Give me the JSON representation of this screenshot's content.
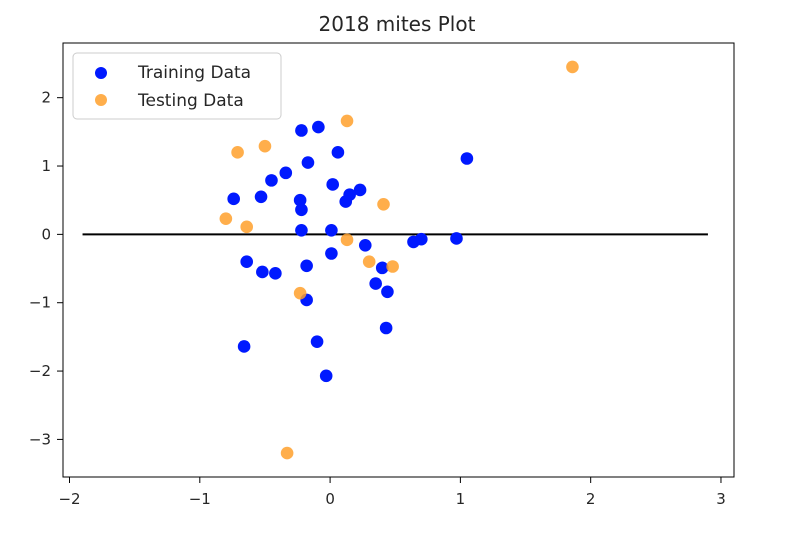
{
  "chart_data": {
    "type": "scatter",
    "title": "2018 mites Plot",
    "xlabel": "",
    "ylabel": "",
    "xlim": [
      -2.05,
      3.1
    ],
    "ylim": [
      -3.55,
      2.8
    ],
    "xticks": [
      -2,
      -1,
      0,
      1,
      2,
      3
    ],
    "yticks": [
      -3,
      -2,
      -1,
      0,
      1,
      2
    ],
    "grid": false,
    "legend_position": "upper-left",
    "hline": {
      "y": 0,
      "xmin": -1.9,
      "xmax": 2.9,
      "color": "#000000"
    },
    "series": [
      {
        "name": "Training Data",
        "color": "#0019ff",
        "points": [
          {
            "x": -0.22,
            "y": 1.52
          },
          {
            "x": -0.09,
            "y": 1.57
          },
          {
            "x": 0.06,
            "y": 1.2
          },
          {
            "x": -0.17,
            "y": 1.05
          },
          {
            "x": 1.05,
            "y": 1.11
          },
          {
            "x": -0.34,
            "y": 0.9
          },
          {
            "x": -0.45,
            "y": 0.79
          },
          {
            "x": -0.74,
            "y": 0.52
          },
          {
            "x": -0.53,
            "y": 0.55
          },
          {
            "x": 0.02,
            "y": 0.73
          },
          {
            "x": 0.23,
            "y": 0.65
          },
          {
            "x": 0.15,
            "y": 0.58
          },
          {
            "x": 0.12,
            "y": 0.48
          },
          {
            "x": -0.23,
            "y": 0.5
          },
          {
            "x": -0.22,
            "y": 0.36
          },
          {
            "x": -0.22,
            "y": 0.06
          },
          {
            "x": 0.01,
            "y": 0.06
          },
          {
            "x": 0.27,
            "y": -0.16
          },
          {
            "x": 0.64,
            "y": -0.11
          },
          {
            "x": 0.7,
            "y": -0.07
          },
          {
            "x": 0.97,
            "y": -0.06
          },
          {
            "x": 0.01,
            "y": -0.28
          },
          {
            "x": -0.64,
            "y": -0.4
          },
          {
            "x": -0.18,
            "y": -0.46
          },
          {
            "x": -0.52,
            "y": -0.55
          },
          {
            "x": -0.42,
            "y": -0.57
          },
          {
            "x": 0.4,
            "y": -0.49
          },
          {
            "x": 0.35,
            "y": -0.72
          },
          {
            "x": 0.44,
            "y": -0.84
          },
          {
            "x": -0.18,
            "y": -0.96
          },
          {
            "x": 0.43,
            "y": -1.37
          },
          {
            "x": -0.1,
            "y": -1.57
          },
          {
            "x": -0.66,
            "y": -1.64
          },
          {
            "x": -0.03,
            "y": -2.07
          }
        ]
      },
      {
        "name": "Testing Data",
        "color": "#ffa02c",
        "points": [
          {
            "x": 1.86,
            "y": 2.45
          },
          {
            "x": 0.13,
            "y": 1.66
          },
          {
            "x": -0.5,
            "y": 1.29
          },
          {
            "x": -0.71,
            "y": 1.2
          },
          {
            "x": 0.41,
            "y": 0.44
          },
          {
            "x": -0.8,
            "y": 0.23
          },
          {
            "x": -0.64,
            "y": 0.11
          },
          {
            "x": 0.13,
            "y": -0.08
          },
          {
            "x": 0.3,
            "y": -0.4
          },
          {
            "x": 0.48,
            "y": -0.47
          },
          {
            "x": -0.23,
            "y": -0.86
          },
          {
            "x": -0.33,
            "y": -3.2
          }
        ]
      }
    ]
  }
}
